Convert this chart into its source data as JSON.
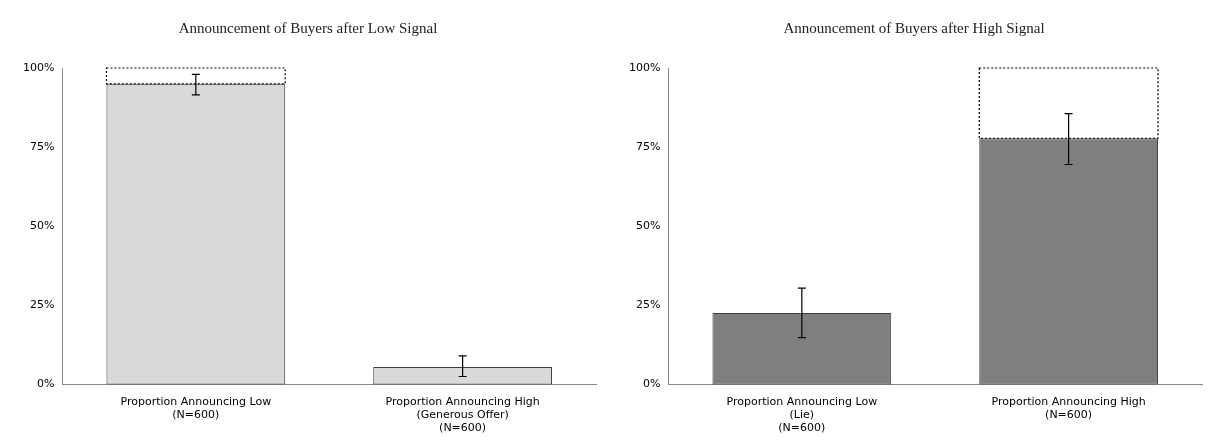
{
  "chart_data": [
    {
      "type": "bar",
      "stacked": true,
      "title": "Announcement of Buyers after Low Signal",
      "categories": [
        "Proportion Announcing Low\n(N=600)",
        "Proportion Announcing High\n(Generous Offer)\n(N=600)"
      ],
      "series": [
        {
          "color": "#d9d9d9",
          "values": [
            95,
            5.5
          ],
          "errors": [
            [
              91.5,
              98
            ],
            [
              2.5,
              9
            ]
          ]
        },
        {
          "color": "#000000",
          "line_style": "dotted",
          "values": [
            5,
            null
          ]
        }
      ],
      "ylim": [
        0,
        100
      ],
      "yticks": [
        {
          "value": 0,
          "label": "0%"
        },
        {
          "value": 25,
          "label": "25%"
        },
        {
          "value": 50,
          "label": "50%"
        },
        {
          "value": 75,
          "label": "75%"
        },
        {
          "value": 100,
          "label": "100%"
        }
      ],
      "grid": false,
      "legend": false
    },
    {
      "type": "bar",
      "stacked": true,
      "title": "Announcement of Buyers after High Signal",
      "categories": [
        "Proportion Announcing Low\n(Lie)\n(N=600)",
        "Proportion Announcing High\n(N=600)"
      ],
      "series": [
        {
          "color": "#7f7f7f",
          "values": [
            22.6,
            77.8
          ],
          "errors": [
            [
              14.8,
              30.4
            ],
            [
              69.5,
              85.6
            ]
          ]
        },
        {
          "color": "#000000",
          "line_style": "dotted",
          "values": [
            null,
            22.2
          ]
        }
      ],
      "ylim": [
        0,
        100
      ],
      "yticks": [
        {
          "value": 0,
          "label": "0%"
        },
        {
          "value": 25,
          "label": "25%"
        },
        {
          "value": 50,
          "label": "50%"
        },
        {
          "value": 75,
          "label": "75%"
        },
        {
          "value": 100,
          "label": "100%"
        }
      ],
      "grid": false,
      "legend": false
    }
  ]
}
